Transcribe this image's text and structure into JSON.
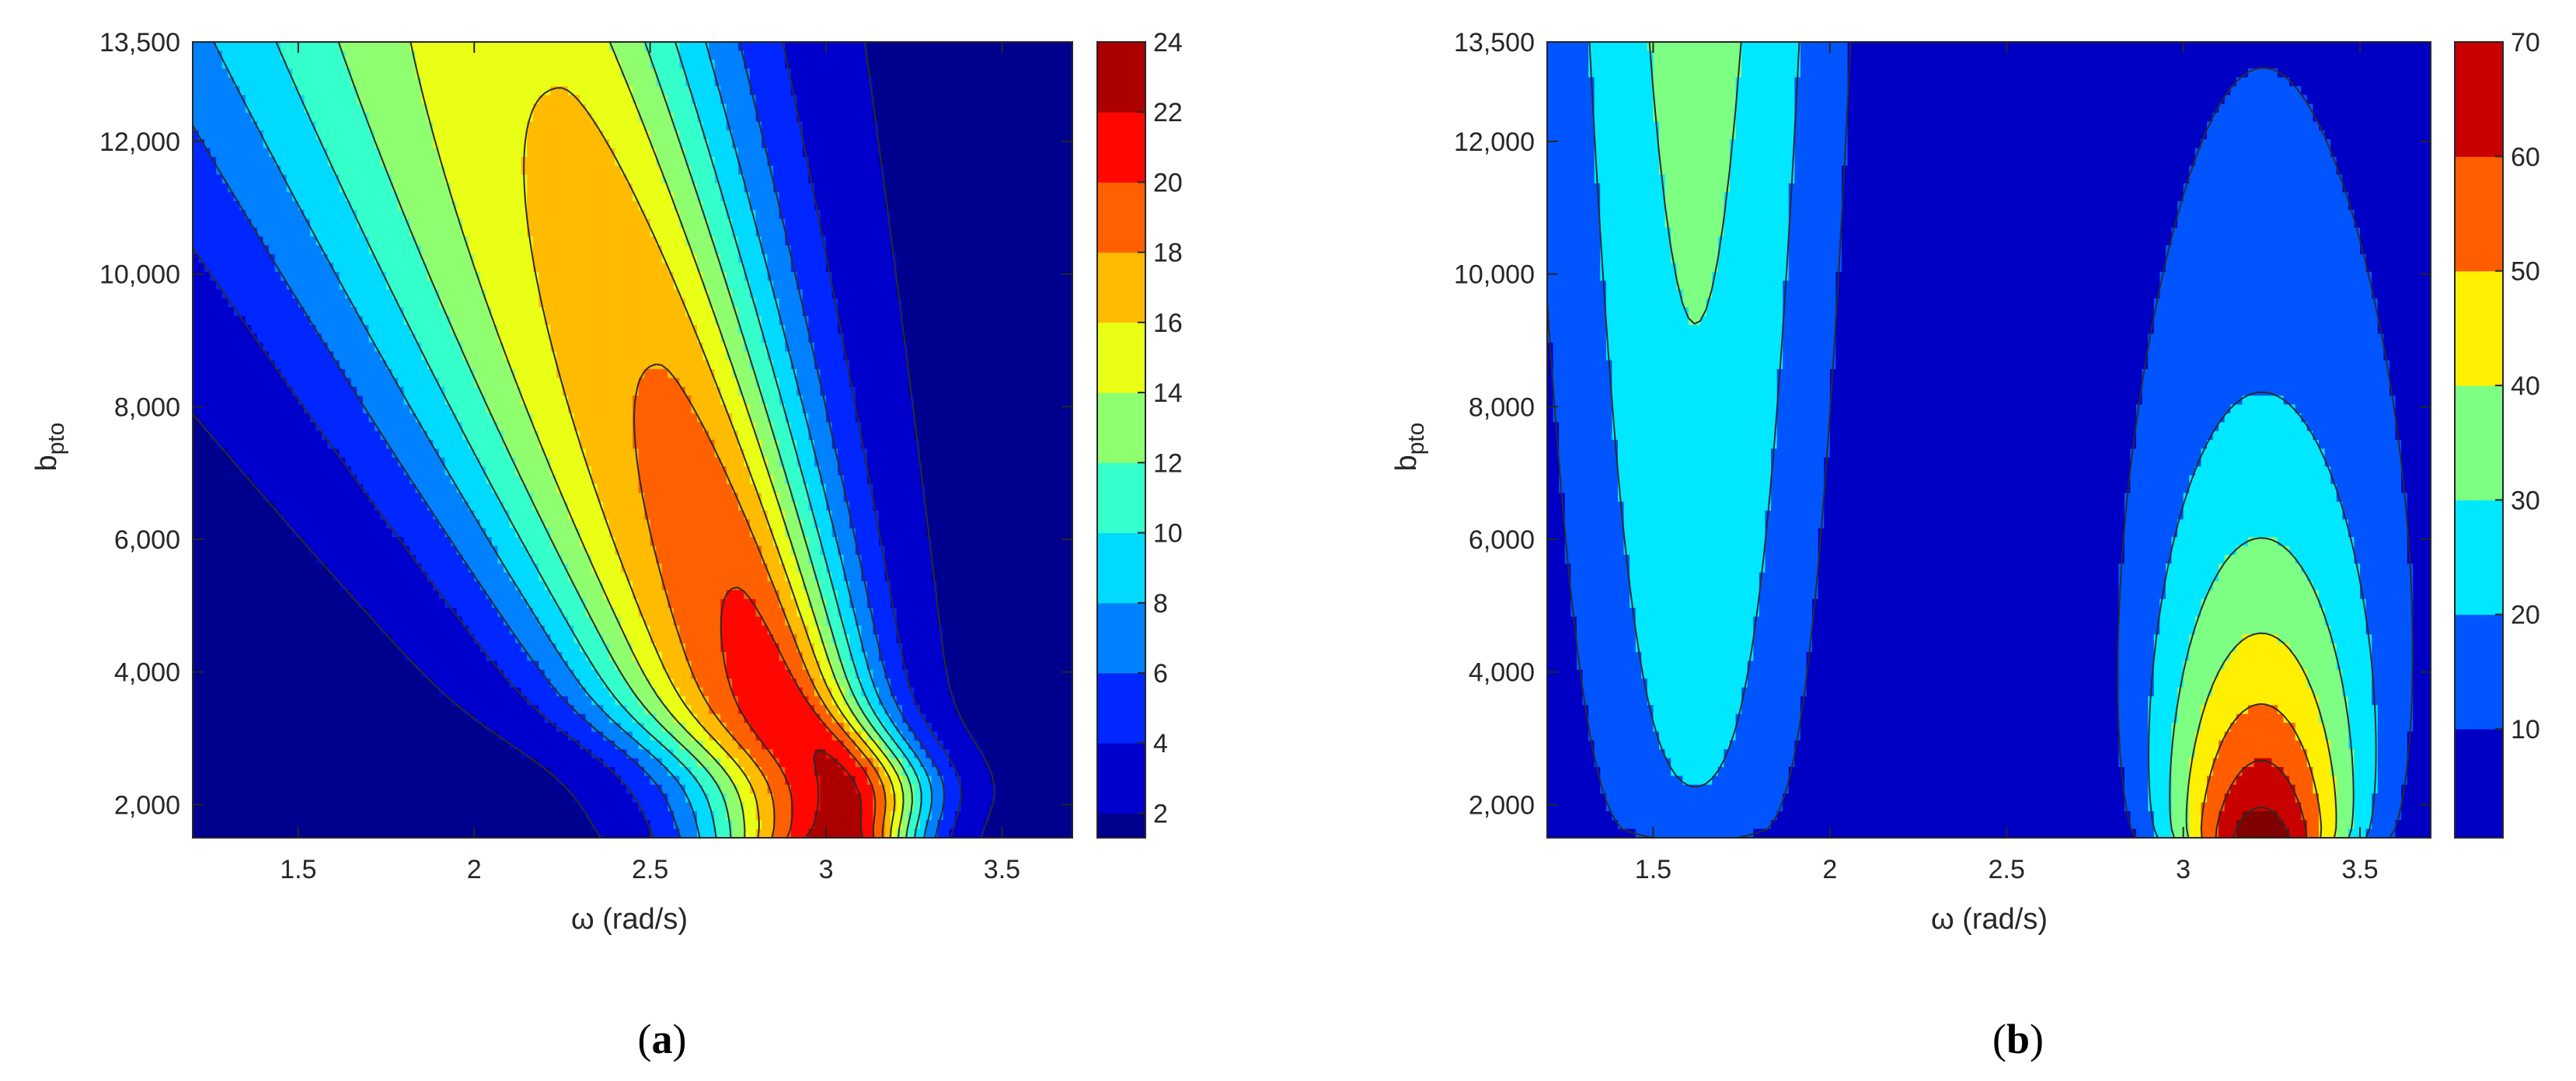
{
  "chart_data": [
    {
      "type": "contour",
      "caption": "a",
      "xlabel": "ω (rad/s)",
      "ylabel": "b",
      "ylabel_subscript": "pto",
      "xlim": [
        1.2,
        3.7
      ],
      "ylim": [
        1500,
        13500
      ],
      "xticks": [
        "1.5",
        "2",
        "2.5",
        "3",
        "3.5"
      ],
      "yticks": [
        "2,000",
        "4,000",
        "6,000",
        "8,000",
        "10,000",
        "12,000",
        "13,500"
      ],
      "colorbar_ticks": [
        "2",
        "4",
        "6",
        "8",
        "10",
        "12",
        "14",
        "16",
        "18",
        "20",
        "22",
        "24"
      ],
      "colorbar_range": [
        1.3,
        24
      ],
      "levels": [
        2,
        4,
        6,
        8,
        10,
        12,
        14,
        16,
        18,
        20,
        22,
        24
      ],
      "peak": {
        "x": 3.05,
        "y": 2400,
        "value": 24
      },
      "colormap": "jet"
    },
    {
      "type": "contour",
      "caption": "b",
      "xlabel": "ω (rad/s)",
      "ylabel": "b",
      "ylabel_subscript": "pto",
      "xlim": [
        1.2,
        3.7
      ],
      "ylim": [
        1500,
        13500
      ],
      "xticks": [
        "1.5",
        "2",
        "2.5",
        "3",
        "3.5"
      ],
      "yticks": [
        "2,000",
        "4,000",
        "6,000",
        "8,000",
        "10,000",
        "12,000",
        "13,500"
      ],
      "colorbar_ticks": [
        "10",
        "20",
        "30",
        "40",
        "50",
        "60",
        "70"
      ],
      "colorbar_range": [
        0.5,
        70
      ],
      "levels": [
        10,
        20,
        30,
        40,
        50,
        60,
        70
      ],
      "peaks": [
        {
          "x": 3.22,
          "y": 1600,
          "value": 70
        },
        {
          "x": 1.65,
          "y": 13500,
          "value": 32
        }
      ],
      "colormap": "jet"
    }
  ],
  "captions": {
    "a": "a",
    "b": "b"
  }
}
